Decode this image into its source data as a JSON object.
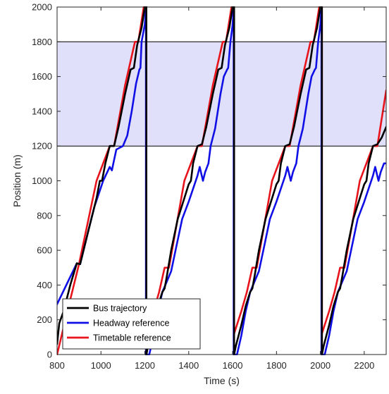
{
  "chart_data": {
    "type": "line",
    "title": "",
    "xlabel": "Time (s)",
    "ylabel": "Position (m)",
    "xlim": [
      800,
      2300
    ],
    "ylim": [
      0,
      2000
    ],
    "xticks": [
      800,
      1000,
      1200,
      1400,
      1600,
      1800,
      2000,
      2200
    ],
    "yticks": [
      0,
      200,
      400,
      600,
      800,
      1000,
      1200,
      1400,
      1600,
      1800,
      2000
    ],
    "grid": false,
    "legend": "bottom-left",
    "band": {
      "y": [
        1200,
        1800
      ],
      "color": "#e0e0fa",
      "boundary_color": "#000000"
    },
    "series": [
      {
        "name": "Timetable reference",
        "color": "#e8141c",
        "segments": [
          [
            [
              800,
              0
            ],
            [
              855,
              290
            ],
            [
              900,
              520
            ],
            [
              980,
              1000
            ],
            [
              1040,
              1200
            ],
            [
              1060,
              1200
            ],
            [
              1110,
              1550
            ],
            [
              1155,
              1800
            ],
            [
              1170,
              1800
            ],
            [
              1195,
              2000
            ],
            [
              1207,
              2000
            ],
            [
              1207,
              0
            ]
          ],
          [
            [
              1207,
              0
            ],
            [
              1220,
              110
            ],
            [
              1240,
              250
            ],
            [
              1265,
              360
            ],
            [
              1290,
              500
            ],
            [
              1310,
              500
            ],
            [
              1380,
              1000
            ],
            [
              1440,
              1200
            ],
            [
              1460,
              1200
            ],
            [
              1510,
              1550
            ],
            [
              1555,
              1800
            ],
            [
              1570,
              1800
            ],
            [
              1595,
              2000
            ],
            [
              1607,
              2000
            ],
            [
              1607,
              0
            ]
          ],
          [
            [
              1607,
              120
            ],
            [
              1640,
              250
            ],
            [
              1665,
              360
            ],
            [
              1690,
              500
            ],
            [
              1710,
              500
            ],
            [
              1780,
              1000
            ],
            [
              1840,
              1200
            ],
            [
              1860,
              1200
            ],
            [
              1910,
              1550
            ],
            [
              1955,
              1800
            ],
            [
              1970,
              1800
            ],
            [
              1995,
              2000
            ],
            [
              2007,
              2000
            ],
            [
              2007,
              0
            ]
          ],
          [
            [
              2007,
              120
            ],
            [
              2040,
              250
            ],
            [
              2065,
              360
            ],
            [
              2090,
              500
            ],
            [
              2110,
              500
            ],
            [
              2180,
              1000
            ],
            [
              2240,
              1200
            ],
            [
              2260,
              1200
            ],
            [
              2300,
              1520
            ]
          ]
        ]
      },
      {
        "name": "Headway reference",
        "color": "#1010e6",
        "segments": [
          [
            [
              800,
              290
            ],
            [
              890,
              525
            ],
            [
              905,
              520
            ],
            [
              940,
              700
            ],
            [
              970,
              850
            ],
            [
              1010,
              1000
            ],
            [
              1040,
              1080
            ],
            [
              1050,
              1060
            ],
            [
              1060,
              1120
            ],
            [
              1070,
              1180
            ],
            [
              1100,
              1200
            ],
            [
              1120,
              1260
            ],
            [
              1140,
              1400
            ],
            [
              1160,
              1560
            ],
            [
              1175,
              1640
            ],
            [
              1180,
              1650
            ],
            [
              1185,
              1800
            ],
            [
              1200,
              1900
            ],
            [
              1205,
              2000
            ],
            [
              1205,
              0
            ]
          ],
          [
            [
              1205,
              0
            ],
            [
              1220,
              0
            ],
            [
              1240,
              110
            ],
            [
              1260,
              250
            ],
            [
              1280,
              360
            ],
            [
              1300,
              420
            ],
            [
              1320,
              480
            ],
            [
              1340,
              600
            ],
            [
              1370,
              780
            ],
            [
              1400,
              880
            ],
            [
              1440,
              1030
            ],
            [
              1450,
              1080
            ],
            [
              1465,
              1000
            ],
            [
              1475,
              1050
            ],
            [
              1490,
              1100
            ],
            [
              1500,
              1200
            ],
            [
              1520,
              1300
            ],
            [
              1545,
              1500
            ],
            [
              1560,
              1600
            ],
            [
              1575,
              1640
            ],
            [
              1580,
              1650
            ],
            [
              1590,
              1800
            ],
            [
              1600,
              1900
            ],
            [
              1605,
              2000
            ],
            [
              1605,
              0
            ]
          ],
          [
            [
              1605,
              0
            ],
            [
              1620,
              0
            ],
            [
              1640,
              110
            ],
            [
              1660,
              250
            ],
            [
              1680,
              360
            ],
            [
              1700,
              420
            ],
            [
              1720,
              480
            ],
            [
              1740,
              600
            ],
            [
              1770,
              780
            ],
            [
              1800,
              880
            ],
            [
              1840,
              1030
            ],
            [
              1850,
              1080
            ],
            [
              1865,
              1000
            ],
            [
              1875,
              1050
            ],
            [
              1890,
              1100
            ],
            [
              1900,
              1200
            ],
            [
              1920,
              1300
            ],
            [
              1945,
              1500
            ],
            [
              1960,
              1600
            ],
            [
              1975,
              1640
            ],
            [
              1980,
              1650
            ],
            [
              1990,
              1800
            ],
            [
              2000,
              1900
            ],
            [
              2005,
              2000
            ],
            [
              2005,
              0
            ]
          ],
          [
            [
              2005,
              0
            ],
            [
              2020,
              0
            ],
            [
              2040,
              110
            ],
            [
              2060,
              250
            ],
            [
              2080,
              360
            ],
            [
              2100,
              420
            ],
            [
              2120,
              480
            ],
            [
              2140,
              600
            ],
            [
              2170,
              780
            ],
            [
              2200,
              880
            ],
            [
              2240,
              1030
            ],
            [
              2250,
              1080
            ],
            [
              2265,
              1000
            ],
            [
              2275,
              1050
            ],
            [
              2290,
              1100
            ],
            [
              2300,
              1100
            ]
          ]
        ]
      },
      {
        "name": "Bus trajectory",
        "color": "#000000",
        "segments": [
          [
            [
              800,
              60
            ],
            [
              810,
              180
            ],
            [
              830,
              250
            ],
            [
              860,
              400
            ],
            [
              890,
              525
            ],
            [
              905,
              520
            ],
            [
              940,
              700
            ],
            [
              980,
              900
            ],
            [
              995,
              1000
            ],
            [
              1005,
              1000
            ],
            [
              1020,
              1100
            ],
            [
              1040,
              1200
            ],
            [
              1060,
              1200
            ],
            [
              1080,
              1310
            ],
            [
              1110,
              1500
            ],
            [
              1135,
              1640
            ],
            [
              1150,
              1650
            ],
            [
              1165,
              1780
            ],
            [
              1185,
              1880
            ],
            [
              1200,
              2000
            ],
            [
              1207,
              2000
            ],
            [
              1207,
              0
            ]
          ],
          [
            [
              1207,
              0
            ],
            [
              1215,
              50
            ],
            [
              1240,
              170
            ],
            [
              1260,
              280
            ],
            [
              1280,
              360
            ],
            [
              1290,
              380
            ],
            [
              1300,
              450
            ],
            [
              1320,
              600
            ],
            [
              1350,
              780
            ],
            [
              1380,
              900
            ],
            [
              1400,
              980
            ],
            [
              1410,
              1000
            ],
            [
              1420,
              1100
            ],
            [
              1440,
              1200
            ],
            [
              1460,
              1210
            ],
            [
              1480,
              1310
            ],
            [
              1510,
              1500
            ],
            [
              1535,
              1640
            ],
            [
              1550,
              1650
            ],
            [
              1565,
              1780
            ],
            [
              1585,
              1880
            ],
            [
              1600,
              2000
            ],
            [
              1607,
              2000
            ],
            [
              1607,
              0
            ]
          ],
          [
            [
              1607,
              0
            ],
            [
              1615,
              50
            ],
            [
              1640,
              170
            ],
            [
              1660,
              280
            ],
            [
              1680,
              360
            ],
            [
              1690,
              380
            ],
            [
              1700,
              450
            ],
            [
              1720,
              600
            ],
            [
              1750,
              780
            ],
            [
              1780,
              900
            ],
            [
              1800,
              980
            ],
            [
              1810,
              1000
            ],
            [
              1820,
              1100
            ],
            [
              1840,
              1200
            ],
            [
              1860,
              1210
            ],
            [
              1880,
              1310
            ],
            [
              1910,
              1500
            ],
            [
              1935,
              1640
            ],
            [
              1950,
              1650
            ],
            [
              1965,
              1780
            ],
            [
              1985,
              1880
            ],
            [
              2000,
              2000
            ],
            [
              2007,
              2000
            ],
            [
              2007,
              0
            ]
          ],
          [
            [
              2007,
              0
            ],
            [
              2015,
              50
            ],
            [
              2040,
              170
            ],
            [
              2060,
              280
            ],
            [
              2080,
              360
            ],
            [
              2090,
              380
            ],
            [
              2100,
              450
            ],
            [
              2120,
              600
            ],
            [
              2150,
              780
            ],
            [
              2180,
              900
            ],
            [
              2200,
              980
            ],
            [
              2210,
              1000
            ],
            [
              2220,
              1100
            ],
            [
              2240,
              1200
            ],
            [
              2260,
              1210
            ],
            [
              2280,
              1250
            ],
            [
              2300,
              1310
            ]
          ]
        ]
      }
    ],
    "legend_entries": [
      {
        "label": "Bus trajectory",
        "color": "#000000"
      },
      {
        "label": "Headway reference",
        "color": "#1010e6"
      },
      {
        "label": "Timetable reference",
        "color": "#e8141c"
      }
    ]
  }
}
